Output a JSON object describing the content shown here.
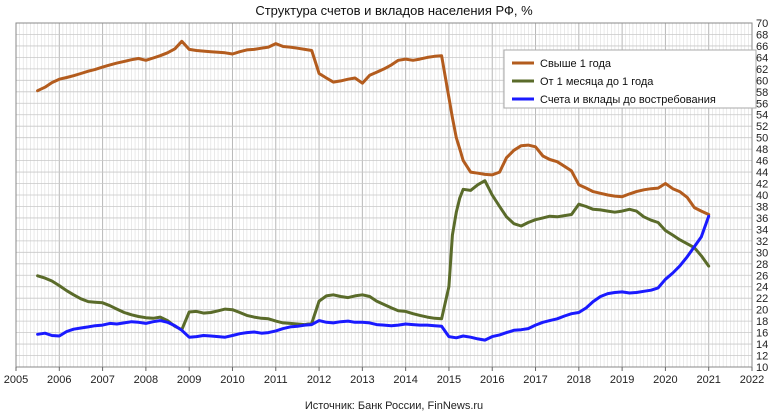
{
  "chart_data": {
    "type": "line",
    "title": "Структура счетов и  вкладов населения РФ, %",
    "source": "Источник: Банк России, FinNews.ru",
    "xlim": [
      2005,
      2022
    ],
    "ylim": [
      10,
      70
    ],
    "x_ticks": [
      2005,
      2006,
      2007,
      2008,
      2009,
      2010,
      2011,
      2012,
      2013,
      2014,
      2015,
      2016,
      2017,
      2018,
      2019,
      2020,
      2021,
      2022
    ],
    "y_ticks": [
      10,
      12,
      14,
      16,
      18,
      20,
      22,
      24,
      26,
      28,
      30,
      32,
      34,
      36,
      38,
      40,
      42,
      44,
      46,
      48,
      50,
      52,
      54,
      56,
      58,
      60,
      62,
      64,
      66,
      68,
      70
    ],
    "y_axis_side": "right",
    "grid": true,
    "legend_position": "top-right",
    "series": [
      {
        "name": "Свыше 1 года",
        "color": "#b35c1e",
        "x": [
          2005.5,
          2005.67,
          2005.83,
          2006.0,
          2006.17,
          2006.33,
          2006.5,
          2006.67,
          2006.83,
          2007.0,
          2007.17,
          2007.33,
          2007.5,
          2007.67,
          2007.83,
          2008.0,
          2008.17,
          2008.33,
          2008.5,
          2008.67,
          2008.83,
          2009.0,
          2009.17,
          2009.33,
          2009.5,
          2009.67,
          2009.83,
          2010.0,
          2010.17,
          2010.33,
          2010.5,
          2010.67,
          2010.83,
          2011.0,
          2011.17,
          2011.33,
          2011.5,
          2011.67,
          2011.83,
          2012.0,
          2012.17,
          2012.33,
          2012.5,
          2012.67,
          2012.83,
          2013.0,
          2013.17,
          2013.33,
          2013.5,
          2013.67,
          2013.83,
          2014.0,
          2014.17,
          2014.33,
          2014.5,
          2014.67,
          2014.83,
          2015.0,
          2015.08,
          2015.17,
          2015.25,
          2015.33,
          2015.5,
          2015.67,
          2015.83,
          2016.0,
          2016.17,
          2016.33,
          2016.5,
          2016.67,
          2016.83,
          2017.0,
          2017.17,
          2017.33,
          2017.5,
          2017.67,
          2017.83,
          2018.0,
          2018.17,
          2018.33,
          2018.5,
          2018.67,
          2018.83,
          2019.0,
          2019.17,
          2019.33,
          2019.5,
          2019.67,
          2019.83,
          2020.0,
          2020.17,
          2020.33,
          2020.5,
          2020.67,
          2020.83,
          2021.0
        ],
        "y": [
          58.2,
          58.8,
          59.6,
          60.2,
          60.5,
          60.8,
          61.2,
          61.6,
          61.9,
          62.3,
          62.7,
          63.0,
          63.3,
          63.6,
          63.8,
          63.5,
          63.9,
          64.3,
          64.8,
          65.5,
          66.8,
          65.4,
          65.2,
          65.1,
          65.0,
          64.9,
          64.8,
          64.6,
          65.0,
          65.3,
          65.4,
          65.6,
          65.8,
          66.4,
          65.9,
          65.8,
          65.6,
          65.4,
          65.2,
          61.2,
          60.4,
          59.7,
          59.9,
          60.2,
          60.4,
          59.5,
          60.9,
          61.4,
          62.0,
          62.7,
          63.5,
          63.7,
          63.5,
          63.7,
          64.0,
          64.2,
          64.3,
          57.0,
          53.5,
          50.0,
          48.0,
          46.0,
          44.0,
          43.8,
          43.6,
          43.5,
          44.0,
          46.5,
          47.8,
          48.6,
          48.7,
          48.4,
          46.8,
          46.2,
          45.8,
          45.0,
          44.2,
          41.8,
          41.2,
          40.6,
          40.3,
          40.0,
          39.8,
          39.7,
          40.2,
          40.6,
          40.9,
          41.1,
          41.2,
          42.0,
          41.1,
          40.6,
          39.6,
          37.8,
          37.2,
          36.6
        ]
      },
      {
        "name": "От 1 месяца до 1 года",
        "color": "#5a6b2a",
        "x": [
          2005.5,
          2005.67,
          2005.83,
          2006.0,
          2006.17,
          2006.33,
          2006.5,
          2006.67,
          2006.83,
          2007.0,
          2007.17,
          2007.33,
          2007.5,
          2007.67,
          2007.83,
          2008.0,
          2008.17,
          2008.33,
          2008.5,
          2008.67,
          2008.83,
          2009.0,
          2009.17,
          2009.33,
          2009.5,
          2009.67,
          2009.83,
          2010.0,
          2010.17,
          2010.33,
          2010.5,
          2010.67,
          2010.83,
          2011.0,
          2011.17,
          2011.33,
          2011.5,
          2011.67,
          2011.83,
          2012.0,
          2012.17,
          2012.33,
          2012.5,
          2012.67,
          2012.83,
          2013.0,
          2013.17,
          2013.33,
          2013.5,
          2013.67,
          2013.83,
          2014.0,
          2014.17,
          2014.33,
          2014.5,
          2014.67,
          2014.83,
          2015.0,
          2015.08,
          2015.17,
          2015.25,
          2015.33,
          2015.5,
          2015.67,
          2015.83,
          2016.0,
          2016.17,
          2016.33,
          2016.5,
          2016.67,
          2016.83,
          2017.0,
          2017.17,
          2017.33,
          2017.5,
          2017.67,
          2017.83,
          2018.0,
          2018.17,
          2018.33,
          2018.5,
          2018.67,
          2018.83,
          2019.0,
          2019.17,
          2019.33,
          2019.5,
          2019.67,
          2019.83,
          2020.0,
          2020.17,
          2020.33,
          2020.5,
          2020.67,
          2020.83,
          2021.0
        ],
        "y": [
          25.9,
          25.5,
          25.0,
          24.2,
          23.3,
          22.6,
          21.9,
          21.4,
          21.3,
          21.2,
          20.7,
          20.1,
          19.5,
          19.1,
          18.8,
          18.6,
          18.5,
          18.7,
          18.1,
          17.1,
          16.5,
          19.6,
          19.7,
          19.4,
          19.5,
          19.8,
          20.1,
          20.0,
          19.5,
          19.0,
          18.7,
          18.5,
          18.4,
          18.0,
          17.7,
          17.6,
          17.5,
          17.4,
          17.6,
          21.5,
          22.4,
          22.6,
          22.3,
          22.1,
          22.4,
          22.6,
          22.3,
          21.5,
          20.9,
          20.3,
          19.8,
          19.7,
          19.3,
          19.0,
          18.7,
          18.5,
          18.4,
          24.0,
          33.0,
          37.0,
          39.5,
          41.0,
          40.8,
          41.8,
          42.5,
          40.0,
          38.0,
          36.2,
          35.0,
          34.6,
          35.2,
          35.7,
          36.0,
          36.3,
          36.2,
          36.4,
          36.6,
          38.4,
          38.0,
          37.5,
          37.4,
          37.2,
          37.0,
          37.2,
          37.5,
          37.2,
          36.2,
          35.6,
          35.2,
          33.8,
          33.0,
          32.2,
          31.5,
          30.8,
          29.4,
          27.6
        ]
      },
      {
        "name": "Счета и вклады до востребования",
        "color": "#1a1aff",
        "x": [
          2005.5,
          2005.67,
          2005.83,
          2006.0,
          2006.17,
          2006.33,
          2006.5,
          2006.67,
          2006.83,
          2007.0,
          2007.17,
          2007.33,
          2007.5,
          2007.67,
          2007.83,
          2008.0,
          2008.17,
          2008.33,
          2008.5,
          2008.67,
          2008.83,
          2009.0,
          2009.17,
          2009.33,
          2009.5,
          2009.67,
          2009.83,
          2010.0,
          2010.17,
          2010.33,
          2010.5,
          2010.67,
          2010.83,
          2011.0,
          2011.17,
          2011.33,
          2011.5,
          2011.67,
          2011.83,
          2012.0,
          2012.17,
          2012.33,
          2012.5,
          2012.67,
          2012.83,
          2013.0,
          2013.17,
          2013.33,
          2013.5,
          2013.67,
          2013.83,
          2014.0,
          2014.17,
          2014.33,
          2014.5,
          2014.67,
          2014.83,
          2015.0,
          2015.17,
          2015.33,
          2015.5,
          2015.67,
          2015.83,
          2016.0,
          2016.17,
          2016.33,
          2016.5,
          2016.67,
          2016.83,
          2017.0,
          2017.17,
          2017.33,
          2017.5,
          2017.67,
          2017.83,
          2018.0,
          2018.17,
          2018.33,
          2018.5,
          2018.67,
          2018.83,
          2019.0,
          2019.17,
          2019.33,
          2019.5,
          2019.67,
          2019.83,
          2020.0,
          2020.17,
          2020.33,
          2020.5,
          2020.67,
          2020.83,
          2021.0
        ],
        "y": [
          15.7,
          15.9,
          15.5,
          15.4,
          16.2,
          16.6,
          16.8,
          17.0,
          17.2,
          17.3,
          17.6,
          17.5,
          17.7,
          17.9,
          17.8,
          17.6,
          17.9,
          18.1,
          17.8,
          17.2,
          16.4,
          15.2,
          15.3,
          15.5,
          15.4,
          15.3,
          15.2,
          15.5,
          15.8,
          16.0,
          16.1,
          15.9,
          16.0,
          16.3,
          16.7,
          17.0,
          17.1,
          17.3,
          17.4,
          18.1,
          17.8,
          17.7,
          17.9,
          18.0,
          17.8,
          17.8,
          17.7,
          17.4,
          17.3,
          17.2,
          17.3,
          17.5,
          17.4,
          17.3,
          17.3,
          17.2,
          17.1,
          15.3,
          15.1,
          15.4,
          15.2,
          14.9,
          14.7,
          15.3,
          15.6,
          16.0,
          16.4,
          16.5,
          16.7,
          17.3,
          17.8,
          18.1,
          18.4,
          18.9,
          19.3,
          19.5,
          20.3,
          21.4,
          22.3,
          22.8,
          23.0,
          23.1,
          22.9,
          23.0,
          23.2,
          23.4,
          23.8,
          25.3,
          26.4,
          27.6,
          29.2,
          31.0,
          32.7,
          36.3
        ]
      }
    ]
  }
}
